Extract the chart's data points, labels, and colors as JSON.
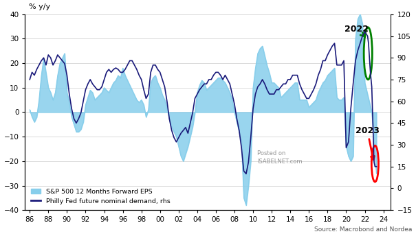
{
  "ylabel_left": "% y/y",
  "ylim_left": [
    -40,
    40
  ],
  "ylim_right": [
    -15,
    120
  ],
  "xlim": [
    1985.5,
    2024.8
  ],
  "xtick_positions": [
    1986,
    1988,
    1990,
    1992,
    1994,
    1996,
    1998,
    2000,
    2002,
    2004,
    2006,
    2008,
    2010,
    2012,
    2014,
    2016,
    2018,
    2020,
    2022,
    2024
  ],
  "xtick_labels": [
    "86",
    "88",
    "90",
    "92",
    "94",
    "96",
    "98",
    "00",
    "02",
    "04",
    "06",
    "08",
    "10",
    "12",
    "14",
    "16",
    "18",
    "20",
    "22",
    "24"
  ],
  "yticks_left": [
    -40,
    -30,
    -20,
    -10,
    0,
    10,
    20,
    30,
    40
  ],
  "yticks_right": [
    -15,
    0,
    15,
    30,
    45,
    60,
    75,
    90,
    105,
    120
  ],
  "legend_sp500": "S&P 500 12 Months Forward EPS",
  "legend_philly": "Philly Fed future nominal demand, rhs",
  "sp500_color": "#87CEEB",
  "philly_color": "#1a1a7a",
  "source_text": "Source: Macrobond and Nordea",
  "annotation_2022": "2022",
  "annotation_2023": "2023",
  "background_color": "#ffffff",
  "sp500_years": [
    1986.0,
    1986.25,
    1986.5,
    1986.75,
    1987.0,
    1987.25,
    1987.5,
    1987.75,
    1988.0,
    1988.25,
    1988.5,
    1988.75,
    1989.0,
    1989.25,
    1989.5,
    1989.75,
    1990.0,
    1990.25,
    1990.5,
    1990.75,
    1991.0,
    1991.25,
    1991.5,
    1991.75,
    1992.0,
    1992.25,
    1992.5,
    1992.75,
    1993.0,
    1993.25,
    1993.5,
    1993.75,
    1994.0,
    1994.25,
    1994.5,
    1994.75,
    1995.0,
    1995.25,
    1995.5,
    1995.75,
    1996.0,
    1996.25,
    1996.5,
    1996.75,
    1997.0,
    1997.25,
    1997.5,
    1997.75,
    1998.0,
    1998.25,
    1998.5,
    1998.75,
    1999.0,
    1999.25,
    1999.5,
    1999.75,
    2000.0,
    2000.25,
    2000.5,
    2000.75,
    2001.0,
    2001.25,
    2001.5,
    2001.75,
    2002.0,
    2002.25,
    2002.5,
    2002.75,
    2003.0,
    2003.25,
    2003.5,
    2003.75,
    2004.0,
    2004.25,
    2004.5,
    2004.75,
    2005.0,
    2005.25,
    2005.5,
    2005.75,
    2006.0,
    2006.25,
    2006.5,
    2006.75,
    2007.0,
    2007.25,
    2007.5,
    2007.75,
    2008.0,
    2008.25,
    2008.5,
    2008.75,
    2009.0,
    2009.25,
    2009.5,
    2009.75,
    2010.0,
    2010.25,
    2010.5,
    2010.75,
    2011.0,
    2011.25,
    2011.5,
    2011.75,
    2012.0,
    2012.25,
    2012.5,
    2012.75,
    2013.0,
    2013.25,
    2013.5,
    2013.75,
    2014.0,
    2014.25,
    2014.5,
    2014.75,
    2015.0,
    2015.25,
    2015.5,
    2015.75,
    2016.0,
    2016.25,
    2016.5,
    2016.75,
    2017.0,
    2017.25,
    2017.5,
    2017.75,
    2018.0,
    2018.25,
    2018.5,
    2018.75,
    2019.0,
    2019.25,
    2019.5,
    2019.75,
    2020.0,
    2020.25,
    2020.5,
    2020.75,
    2021.0,
    2021.25,
    2021.5,
    2021.75,
    2022.0,
    2022.25,
    2022.5,
    2022.75,
    2023.0,
    2023.25
  ],
  "sp500_values": [
    1.0,
    -2.0,
    -4.0,
    -2.0,
    5.0,
    15.0,
    22.0,
    16.0,
    10.0,
    8.0,
    5.0,
    8.0,
    15.0,
    20.0,
    22.0,
    24.0,
    8.0,
    4.0,
    -2.0,
    -5.0,
    -8.0,
    -8.0,
    -7.0,
    -4.0,
    3.0,
    6.0,
    9.0,
    8.0,
    5.0,
    6.0,
    7.0,
    8.0,
    10.0,
    9.0,
    8.0,
    10.0,
    12.0,
    13.0,
    15.0,
    14.0,
    18.0,
    15.0,
    13.0,
    11.0,
    9.0,
    7.0,
    5.0,
    4.0,
    5.0,
    3.0,
    -2.0,
    1.0,
    12.0,
    14.0,
    15.0,
    12.0,
    10.0,
    7.0,
    5.0,
    2.0,
    -3.0,
    -6.0,
    -8.0,
    -10.0,
    -14.0,
    -18.0,
    -20.0,
    -17.0,
    -14.0,
    -10.0,
    -6.0,
    0.0,
    8.0,
    11.0,
    13.0,
    12.0,
    9.0,
    10.0,
    11.0,
    12.0,
    13.0,
    14.0,
    14.0,
    13.0,
    12.0,
    10.0,
    8.0,
    5.0,
    0.0,
    -4.0,
    -8.0,
    -12.0,
    -35.0,
    -38.0,
    -30.0,
    -20.0,
    10.0,
    18.0,
    24.0,
    26.0,
    27.0,
    23.0,
    19.0,
    16.0,
    12.0,
    12.0,
    11.0,
    10.0,
    6.0,
    7.0,
    8.0,
    9.0,
    10.0,
    11.0,
    12.0,
    12.0,
    5.0,
    5.0,
    5.0,
    5.0,
    2.0,
    3.0,
    4.0,
    5.0,
    8.0,
    10.0,
    12.0,
    13.0,
    15.0,
    16.0,
    17.0,
    18.0,
    6.0,
    5.0,
    5.0,
    6.0,
    -14.0,
    -18.0,
    -20.0,
    -18.0,
    30.0,
    38.0,
    40.0,
    36.0,
    12.0,
    8.0,
    4.0,
    0.0,
    -12.0,
    -25.0
  ],
  "philly_years": [
    1986.0,
    1986.25,
    1986.5,
    1986.75,
    1987.0,
    1987.25,
    1987.5,
    1987.75,
    1988.0,
    1988.25,
    1988.5,
    1988.75,
    1989.0,
    1989.25,
    1989.5,
    1989.75,
    1990.0,
    1990.25,
    1990.5,
    1990.75,
    1991.0,
    1991.25,
    1991.5,
    1991.75,
    1992.0,
    1992.25,
    1992.5,
    1992.75,
    1993.0,
    1993.25,
    1993.5,
    1993.75,
    1994.0,
    1994.25,
    1994.5,
    1994.75,
    1995.0,
    1995.25,
    1995.5,
    1995.75,
    1996.0,
    1996.25,
    1996.5,
    1996.75,
    1997.0,
    1997.25,
    1997.5,
    1997.75,
    1998.0,
    1998.25,
    1998.5,
    1998.75,
    1999.0,
    1999.25,
    1999.5,
    1999.75,
    2000.0,
    2000.25,
    2000.5,
    2000.75,
    2001.0,
    2001.25,
    2001.5,
    2001.75,
    2002.0,
    2002.25,
    2002.5,
    2002.75,
    2003.0,
    2003.25,
    2003.5,
    2003.75,
    2004.0,
    2004.25,
    2004.5,
    2004.75,
    2005.0,
    2005.25,
    2005.5,
    2005.75,
    2006.0,
    2006.25,
    2006.5,
    2006.75,
    2007.0,
    2007.25,
    2007.5,
    2007.75,
    2008.0,
    2008.25,
    2008.5,
    2008.75,
    2009.0,
    2009.25,
    2009.5,
    2009.75,
    2010.0,
    2010.25,
    2010.5,
    2010.75,
    2011.0,
    2011.25,
    2011.5,
    2011.75,
    2012.0,
    2012.25,
    2012.5,
    2012.75,
    2013.0,
    2013.25,
    2013.5,
    2013.75,
    2014.0,
    2014.25,
    2014.5,
    2014.75,
    2015.0,
    2015.25,
    2015.5,
    2015.75,
    2016.0,
    2016.25,
    2016.5,
    2016.75,
    2017.0,
    2017.25,
    2017.5,
    2017.75,
    2018.0,
    2018.25,
    2018.5,
    2018.75,
    2019.0,
    2019.25,
    2019.5,
    2019.75,
    2020.0,
    2020.25,
    2020.5,
    2020.75,
    2021.0,
    2021.25,
    2021.5,
    2021.75,
    2022.0,
    2022.1,
    2022.2,
    2022.3,
    2022.4,
    2022.5,
    2022.6,
    2022.75,
    2023.0,
    2023.1,
    2023.25
  ],
  "philly_values_rhs": [
    75,
    80,
    78,
    82,
    85,
    88,
    90,
    85,
    92,
    90,
    85,
    88,
    92,
    90,
    88,
    86,
    78,
    65,
    55,
    48,
    45,
    48,
    52,
    60,
    68,
    72,
    75,
    72,
    70,
    68,
    68,
    70,
    75,
    80,
    82,
    80,
    82,
    83,
    82,
    80,
    80,
    82,
    85,
    88,
    88,
    85,
    82,
    78,
    75,
    68,
    62,
    65,
    80,
    85,
    85,
    82,
    80,
    75,
    70,
    60,
    48,
    40,
    35,
    32,
    35,
    38,
    40,
    42,
    38,
    45,
    52,
    62,
    65,
    68,
    70,
    72,
    72,
    75,
    75,
    78,
    80,
    80,
    78,
    75,
    78,
    75,
    72,
    65,
    58,
    48,
    40,
    28,
    12,
    10,
    18,
    35,
    55,
    65,
    70,
    72,
    75,
    72,
    68,
    65,
    65,
    65,
    68,
    68,
    70,
    72,
    72,
    75,
    75,
    78,
    78,
    78,
    72,
    68,
    65,
    62,
    62,
    65,
    68,
    72,
    78,
    82,
    88,
    88,
    92,
    95,
    98,
    100,
    85,
    85,
    85,
    88,
    28,
    32,
    55,
    72,
    88,
    95,
    100,
    105,
    108,
    107,
    106,
    105,
    100,
    90,
    80,
    70,
    18,
    15,
    15
  ]
}
